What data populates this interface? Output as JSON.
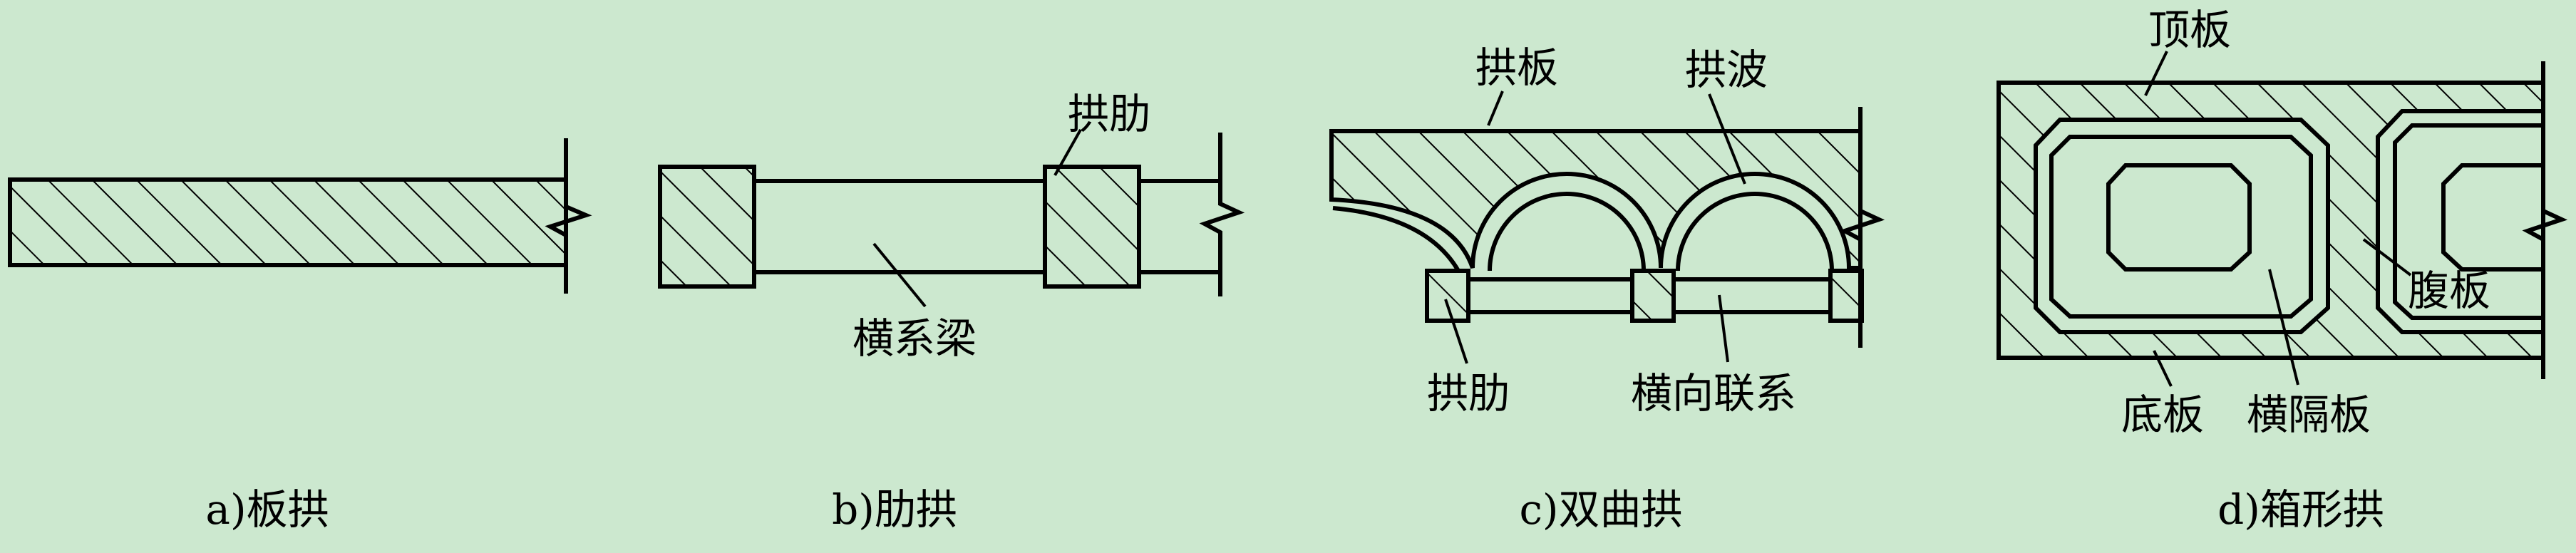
{
  "diagrams": {
    "a": {
      "caption": "a)板拱"
    },
    "b": {
      "caption": "b)肋拱",
      "labels": {
        "rib": "拱肋",
        "cross_beam": "横系梁"
      }
    },
    "c": {
      "caption": "c)双曲拱",
      "labels": {
        "arch_slab": "拱板",
        "arch_wave": "拱波",
        "rib": "拱肋",
        "cross_tie": "横向联系"
      }
    },
    "d": {
      "caption": "d)箱形拱",
      "labels": {
        "top_slab": "顶板",
        "web": "腹板",
        "bottom_slab": "底板",
        "diaphragm": "横隔板"
      }
    }
  },
  "colors": {
    "background": "#cce8cf",
    "stroke": "#000000"
  }
}
